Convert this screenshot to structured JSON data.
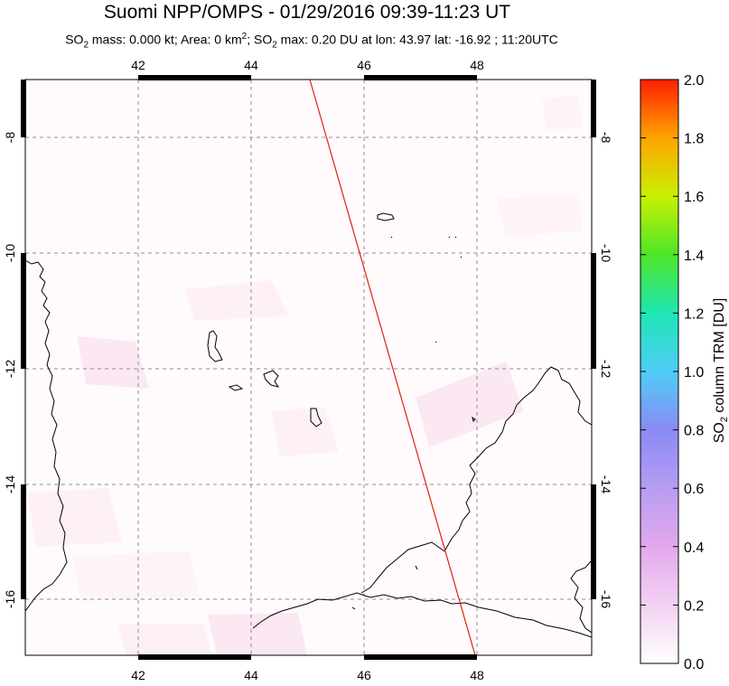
{
  "title": "Suomi NPP/OMPS - 01/29/2016 09:39-11:23 UT",
  "subtitle": {
    "so2_label": "SO",
    "so2_sub": "2",
    "mass_text": " mass: 0.000 kt; Area: 0 km",
    "km_sup": "2",
    "sep": "; SO",
    "max_sub": "2",
    "max_text": " max: 0.20 DU at lon: 43.97 lat: -16.92 ; 11:20UTC"
  },
  "map": {
    "lon_ticks": [
      "42",
      "44",
      "46",
      "48"
    ],
    "lat_ticks": [
      "-8",
      "-10",
      "-12",
      "-14",
      "-16"
    ],
    "lon_range": [
      40,
      50
    ],
    "lat_range": [
      -17.2,
      -7.0
    ],
    "orbit_track": [
      [
        45.05,
        -7.0
      ],
      [
        48.0,
        -17.2
      ]
    ]
  },
  "colorbar": {
    "label": "SO2 column TRM [DU]",
    "label_prefix": "SO",
    "label_sub": "2",
    "label_suffix": " column TRM [DU]",
    "ticks": [
      "2.0",
      "1.8",
      "1.6",
      "1.4",
      "1.2",
      "1.0",
      "0.8",
      "0.6",
      "0.4",
      "0.2",
      "0.0"
    ],
    "range": [
      0.0,
      2.0
    ],
    "colors": [
      "#ff1a00",
      "#ff7a00",
      "#ffd200",
      "#c8f000",
      "#5ae61e",
      "#00e6c8",
      "#50d2ff",
      "#8c8cff",
      "#b9a0ff",
      "#e6a0f0",
      "#fff0ff"
    ]
  }
}
